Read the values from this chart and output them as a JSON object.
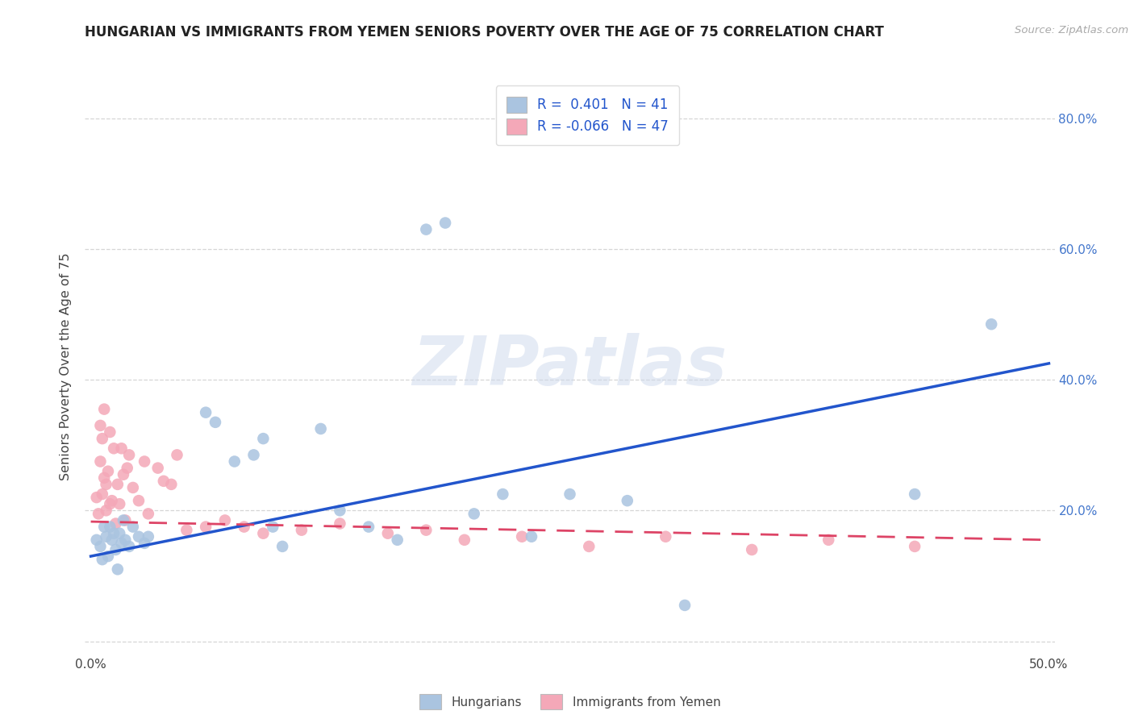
{
  "title": "HUNGARIAN VS IMMIGRANTS FROM YEMEN SENIORS POVERTY OVER THE AGE OF 75 CORRELATION CHART",
  "source": "Source: ZipAtlas.com",
  "ylabel": "Seniors Poverty Over the Age of 75",
  "xlim": [
    -0.003,
    0.503
  ],
  "ylim": [
    -0.02,
    0.86
  ],
  "xticks": [
    0.0,
    0.1,
    0.2,
    0.3,
    0.4,
    0.5
  ],
  "yticks": [
    0.0,
    0.2,
    0.4,
    0.6,
    0.8
  ],
  "xtick_labels": [
    "0.0%",
    "",
    "",
    "",
    "",
    "50.0%"
  ],
  "ytick_labels_right": [
    "",
    "20.0%",
    "40.0%",
    "60.0%",
    "80.0%"
  ],
  "background_color": "#ffffff",
  "grid_color": "#cccccc",
  "hungarian_color": "#aac4e0",
  "yemen_color": "#f4a8b8",
  "hungarian_line_color": "#2255cc",
  "yemen_line_color": "#dd4466",
  "R_hungarian": 0.401,
  "N_hungarian": 41,
  "R_yemen": -0.066,
  "N_yemen": 47,
  "watermark": "ZIPatlas",
  "legend_labels": [
    "Hungarians",
    "Immigrants from Yemen"
  ],
  "hun_line_x0": 0.0,
  "hun_line_y0": 0.13,
  "hun_line_x1": 0.5,
  "hun_line_y1": 0.425,
  "yem_line_x0": 0.0,
  "yem_line_y0": 0.183,
  "yem_line_x1": 0.5,
  "yem_line_y1": 0.155,
  "hungarian_x": [
    0.003,
    0.005,
    0.006,
    0.007,
    0.008,
    0.009,
    0.01,
    0.011,
    0.012,
    0.013,
    0.014,
    0.015,
    0.016,
    0.017,
    0.018,
    0.02,
    0.022,
    0.025,
    0.028,
    0.03,
    0.06,
    0.065,
    0.075,
    0.085,
    0.09,
    0.095,
    0.1,
    0.12,
    0.13,
    0.145,
    0.16,
    0.175,
    0.185,
    0.2,
    0.215,
    0.23,
    0.25,
    0.28,
    0.31,
    0.43,
    0.47
  ],
  "hungarian_y": [
    0.155,
    0.145,
    0.125,
    0.175,
    0.16,
    0.13,
    0.175,
    0.155,
    0.165,
    0.14,
    0.11,
    0.165,
    0.15,
    0.185,
    0.155,
    0.145,
    0.175,
    0.16,
    0.15,
    0.16,
    0.35,
    0.335,
    0.275,
    0.285,
    0.31,
    0.175,
    0.145,
    0.325,
    0.2,
    0.175,
    0.155,
    0.63,
    0.64,
    0.195,
    0.225,
    0.16,
    0.225,
    0.215,
    0.055,
    0.225,
    0.485
  ],
  "yemen_x": [
    0.003,
    0.004,
    0.005,
    0.005,
    0.006,
    0.006,
    0.007,
    0.007,
    0.008,
    0.008,
    0.009,
    0.01,
    0.01,
    0.011,
    0.012,
    0.013,
    0.014,
    0.015,
    0.016,
    0.017,
    0.018,
    0.019,
    0.02,
    0.022,
    0.025,
    0.028,
    0.03,
    0.035,
    0.038,
    0.042,
    0.045,
    0.05,
    0.06,
    0.07,
    0.08,
    0.09,
    0.11,
    0.13,
    0.155,
    0.175,
    0.195,
    0.225,
    0.26,
    0.3,
    0.345,
    0.385,
    0.43
  ],
  "yemen_y": [
    0.22,
    0.195,
    0.33,
    0.275,
    0.225,
    0.31,
    0.25,
    0.355,
    0.2,
    0.24,
    0.26,
    0.32,
    0.21,
    0.215,
    0.295,
    0.18,
    0.24,
    0.21,
    0.295,
    0.255,
    0.185,
    0.265,
    0.285,
    0.235,
    0.215,
    0.275,
    0.195,
    0.265,
    0.245,
    0.24,
    0.285,
    0.17,
    0.175,
    0.185,
    0.175,
    0.165,
    0.17,
    0.18,
    0.165,
    0.17,
    0.155,
    0.16,
    0.145,
    0.16,
    0.14,
    0.155,
    0.145
  ]
}
